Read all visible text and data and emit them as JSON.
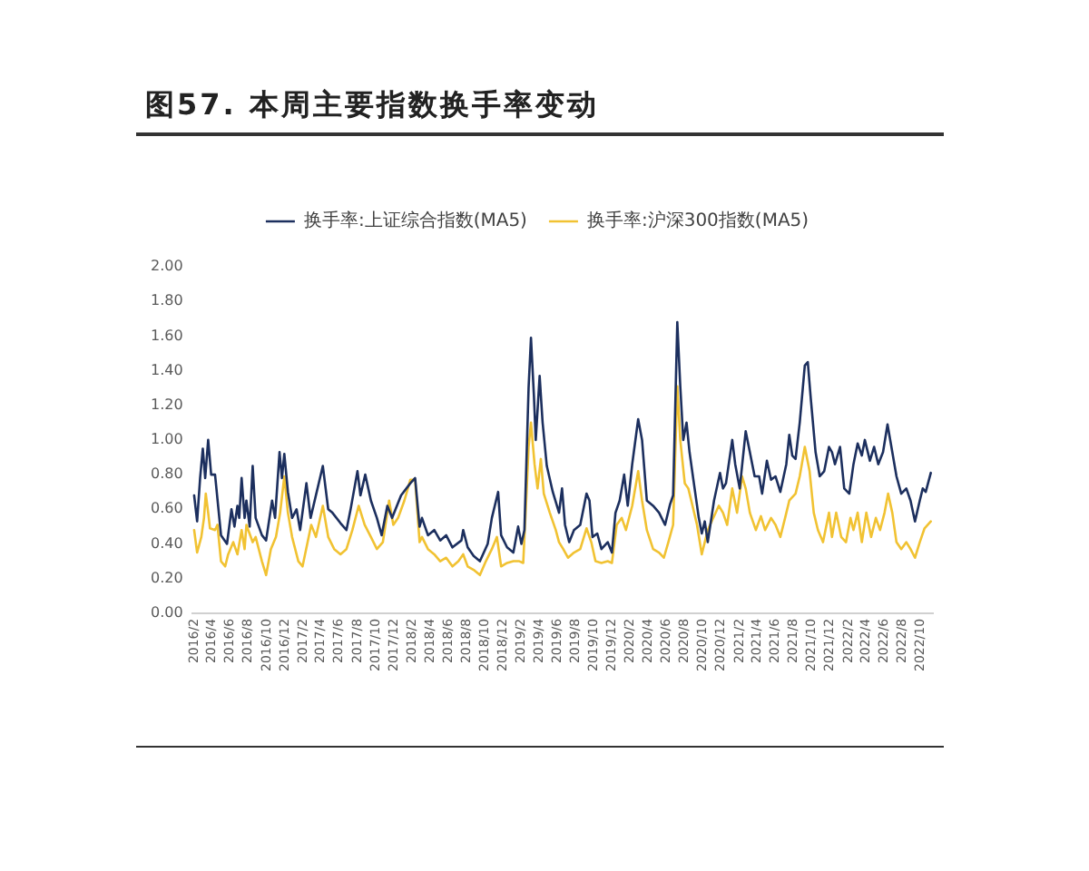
{
  "chart_data": {
    "type": "line",
    "title": "图57. 本周主要指数换手率变动",
    "legend": "top",
    "xlim": [
      "2016-01-25",
      "2022-11-10"
    ],
    "xticks": [
      {
        "value": "2016-02",
        "label": "2016/2"
      },
      {
        "value": "2016-04",
        "label": "2016/4"
      },
      {
        "value": "2016-06",
        "label": "2016/6"
      },
      {
        "value": "2016-08",
        "label": "2016/8"
      },
      {
        "value": "2016-10",
        "label": "2016/10"
      },
      {
        "value": "2016-12",
        "label": "2016/12"
      },
      {
        "value": "2017-02",
        "label": "2017/2"
      },
      {
        "value": "2017-04",
        "label": "2017/4"
      },
      {
        "value": "2017-06",
        "label": "2017/6"
      },
      {
        "value": "2017-08",
        "label": "2017/8"
      },
      {
        "value": "2017-10",
        "label": "2017/10"
      },
      {
        "value": "2017-12",
        "label": "2017/12"
      },
      {
        "value": "2018-02",
        "label": "2018/2"
      },
      {
        "value": "2018-04",
        "label": "2018/4"
      },
      {
        "value": "2018-06",
        "label": "2018/6"
      },
      {
        "value": "2018-08",
        "label": "2018/8"
      },
      {
        "value": "2018-10",
        "label": "2018/10"
      },
      {
        "value": "2018-12",
        "label": "2018/12"
      },
      {
        "value": "2019-02",
        "label": "2019/2"
      },
      {
        "value": "2019-04",
        "label": "2019/4"
      },
      {
        "value": "2019-06",
        "label": "2019/6"
      },
      {
        "value": "2019-08",
        "label": "2019/8"
      },
      {
        "value": "2019-10",
        "label": "2019/10"
      },
      {
        "value": "2019-12",
        "label": "2019/12"
      },
      {
        "value": "2020-02",
        "label": "2020/2"
      },
      {
        "value": "2020-04",
        "label": "2020/4"
      },
      {
        "value": "2020-06",
        "label": "2020/6"
      },
      {
        "value": "2020-08",
        "label": "2020/8"
      },
      {
        "value": "2020-10",
        "label": "2020/10"
      },
      {
        "value": "2020-12",
        "label": "2020/12"
      },
      {
        "value": "2021-02",
        "label": "2021/2"
      },
      {
        "value": "2021-04",
        "label": "2021/4"
      },
      {
        "value": "2021-06",
        "label": "2021/6"
      },
      {
        "value": "2021-08",
        "label": "2021/8"
      },
      {
        "value": "2021-10",
        "label": "2021/10"
      },
      {
        "value": "2021-12",
        "label": "2021/12"
      },
      {
        "value": "2022-02",
        "label": "2022/2"
      },
      {
        "value": "2022-04",
        "label": "2022/4"
      },
      {
        "value": "2022-06",
        "label": "2022/6"
      },
      {
        "value": "2022-08",
        "label": "2022/8"
      },
      {
        "value": "2022-10",
        "label": "2022/10"
      }
    ],
    "ylim": [
      0,
      2
    ],
    "yticks": [
      {
        "value": 0,
        "label": "0.00"
      },
      {
        "value": 0.2,
        "label": "0.20"
      },
      {
        "value": 0.4,
        "label": "0.40"
      },
      {
        "value": 0.6,
        "label": "0.60"
      },
      {
        "value": 0.8,
        "label": "0.80"
      },
      {
        "value": 1,
        "label": "1.00"
      },
      {
        "value": 1.2,
        "label": "1.20"
      },
      {
        "value": 1.4,
        "label": "1.40"
      },
      {
        "value": 1.6,
        "label": "1.60"
      },
      {
        "value": 1.8,
        "label": "1.80"
      },
      {
        "value": 2,
        "label": "2.00"
      }
    ],
    "series": [
      {
        "name": "换手率:上证综合指数(MA5)",
        "color": "#1c2f5e",
        "x": [
          "2016-02-01",
          "2016-02-11",
          "2016-02-21",
          "2016-03-01",
          "2016-03-09",
          "2016-03-19",
          "2016-03-29",
          "2016-04-11",
          "2016-05-01",
          "2016-05-21",
          "2016-06-05",
          "2016-06-15",
          "2016-06-25",
          "2016-07-01",
          "2016-07-09",
          "2016-07-19",
          "2016-07-25",
          "2016-08-05",
          "2016-08-15",
          "2016-08-25",
          "2016-09-15",
          "2016-09-29",
          "2016-10-19",
          "2016-10-29",
          "2016-11-13",
          "2016-11-21",
          "2016-11-29",
          "2016-12-11",
          "2016-12-25",
          "2017-01-09",
          "2017-01-21",
          "2017-02-11",
          "2017-02-25",
          "2017-04-07",
          "2017-04-25",
          "2017-05-09",
          "2017-06-05",
          "2017-06-25",
          "2017-07-09",
          "2017-08-01",
          "2017-08-11",
          "2017-08-27",
          "2017-09-15",
          "2017-10-05",
          "2017-10-21",
          "2017-11-09",
          "2017-11-25",
          "2017-12-25",
          "2018-01-25",
          "2018-02-10",
          "2018-02-25",
          "2018-03-05",
          "2018-03-25",
          "2018-04-15",
          "2018-05-05",
          "2018-05-25",
          "2018-06-15",
          "2018-07-15",
          "2018-07-21",
          "2018-08-05",
          "2018-08-25",
          "2018-09-15",
          "2018-10-11",
          "2018-10-25",
          "2018-11-15",
          "2018-11-25",
          "2018-12-15",
          "2019-01-05",
          "2019-01-21",
          "2019-02-01",
          "2019-02-11",
          "2019-02-25",
          "2019-03-05",
          "2019-03-15",
          "2019-03-21",
          "2019-04-03",
          "2019-04-13",
          "2019-04-27",
          "2019-05-17",
          "2019-06-07",
          "2019-06-17",
          "2019-06-27",
          "2019-07-11",
          "2019-07-27",
          "2019-08-17",
          "2019-09-07",
          "2019-09-17",
          "2019-09-27",
          "2019-10-13",
          "2019-10-27",
          "2019-11-17",
          "2019-12-01",
          "2019-12-13",
          "2019-12-27",
          "2020-01-11",
          "2020-01-23",
          "2020-02-07",
          "2020-02-27",
          "2020-03-11",
          "2020-03-27",
          "2020-04-17",
          "2020-05-07",
          "2020-05-27",
          "2020-06-13",
          "2020-06-23",
          "2020-07-07",
          "2020-07-17",
          "2020-07-27",
          "2020-08-07",
          "2020-08-17",
          "2020-09-03",
          "2020-09-17",
          "2020-09-27",
          "2020-10-07",
          "2020-10-17",
          "2020-11-07",
          "2020-11-27",
          "2020-12-07",
          "2020-12-17",
          "2021-01-07",
          "2021-01-17",
          "2021-02-01",
          "2021-02-21",
          "2021-03-07",
          "2021-03-23",
          "2021-04-07",
          "2021-04-17",
          "2021-05-03",
          "2021-05-17",
          "2021-06-01",
          "2021-06-17",
          "2021-07-07",
          "2021-07-17",
          "2021-07-27",
          "2021-08-07",
          "2021-08-21",
          "2021-09-07",
          "2021-09-17",
          "2021-09-27",
          "2021-10-13",
          "2021-10-27",
          "2021-11-11",
          "2021-11-27",
          "2021-12-07",
          "2021-12-17",
          "2022-01-03",
          "2022-01-17",
          "2022-02-03",
          "2022-02-17",
          "2022-03-03",
          "2022-03-17",
          "2022-03-27",
          "2022-04-13",
          "2022-04-27",
          "2022-05-11",
          "2022-05-27",
          "2022-06-11",
          "2022-06-27",
          "2022-07-11",
          "2022-07-27",
          "2022-08-13",
          "2022-08-27",
          "2022-09-11",
          "2022-09-27",
          "2022-10-07",
          "2022-10-17",
          "2022-11-03"
        ],
        "values": [
          0.68,
          0.53,
          0.78,
          0.95,
          0.78,
          1.0,
          0.8,
          0.8,
          0.45,
          0.4,
          0.6,
          0.5,
          0.62,
          0.55,
          0.78,
          0.55,
          0.65,
          0.5,
          0.85,
          0.55,
          0.45,
          0.42,
          0.65,
          0.55,
          0.93,
          0.78,
          0.92,
          0.7,
          0.55,
          0.6,
          0.48,
          0.75,
          0.55,
          0.85,
          0.6,
          0.58,
          0.52,
          0.48,
          0.6,
          0.82,
          0.68,
          0.8,
          0.65,
          0.55,
          0.45,
          0.62,
          0.55,
          0.68,
          0.75,
          0.78,
          0.5,
          0.55,
          0.45,
          0.48,
          0.42,
          0.45,
          0.38,
          0.42,
          0.48,
          0.38,
          0.33,
          0.3,
          0.4,
          0.55,
          0.7,
          0.45,
          0.38,
          0.35,
          0.5,
          0.4,
          0.48,
          1.3,
          1.59,
          1.25,
          1.0,
          1.37,
          1.1,
          0.85,
          0.7,
          0.58,
          0.72,
          0.51,
          0.41,
          0.48,
          0.51,
          0.69,
          0.65,
          0.44,
          0.46,
          0.37,
          0.41,
          0.35,
          0.58,
          0.65,
          0.8,
          0.62,
          0.86,
          1.12,
          1.0,
          0.65,
          0.62,
          0.58,
          0.51,
          0.63,
          0.68,
          1.68,
          1.31,
          1.0,
          1.1,
          0.93,
          0.72,
          0.55,
          0.46,
          0.53,
          0.41,
          0.65,
          0.81,
          0.72,
          0.75,
          1.0,
          0.86,
          0.72,
          1.05,
          0.93,
          0.79,
          0.79,
          0.69,
          0.88,
          0.77,
          0.79,
          0.7,
          0.86,
          1.03,
          0.91,
          0.89,
          1.1,
          1.43,
          1.45,
          1.24,
          0.93,
          0.79,
          0.82,
          0.96,
          0.93,
          0.86,
          0.96,
          0.72,
          0.69,
          0.86,
          0.98,
          0.91,
          1.0,
          0.88,
          0.96,
          0.86,
          0.93,
          1.09,
          0.93,
          0.79,
          0.69,
          0.72,
          0.65,
          0.53,
          0.65,
          0.72,
          0.7,
          0.81
        ]
      },
      {
        "name": "换手率:沪深300指数(MA5)",
        "color": "#f1c232",
        "x": [
          "2016-02-01",
          "2016-02-11",
          "2016-02-25",
          "2016-03-05",
          "2016-03-11",
          "2016-03-19",
          "2016-03-25",
          "2016-04-11",
          "2016-04-19",
          "2016-05-01",
          "2016-05-15",
          "2016-05-25",
          "2016-06-11",
          "2016-06-25",
          "2016-07-09",
          "2016-07-19",
          "2016-07-25",
          "2016-08-15",
          "2016-08-25",
          "2016-09-15",
          "2016-09-29",
          "2016-10-15",
          "2016-11-01",
          "2016-11-15",
          "2016-11-29",
          "2016-12-11",
          "2016-12-25",
          "2017-01-15",
          "2017-01-29",
          "2017-02-15",
          "2017-02-27",
          "2017-03-15",
          "2017-04-07",
          "2017-04-25",
          "2017-05-15",
          "2017-06-05",
          "2017-06-25",
          "2017-07-15",
          "2017-08-05",
          "2017-08-25",
          "2017-09-15",
          "2017-10-05",
          "2017-10-25",
          "2017-11-15",
          "2017-11-29",
          "2017-12-15",
          "2018-01-05",
          "2018-01-25",
          "2018-02-10",
          "2018-02-25",
          "2018-03-05",
          "2018-03-25",
          "2018-04-15",
          "2018-05-05",
          "2018-05-25",
          "2018-06-15",
          "2018-07-05",
          "2018-07-21",
          "2018-08-05",
          "2018-08-25",
          "2018-09-15",
          "2018-10-05",
          "2018-10-25",
          "2018-11-11",
          "2018-11-25",
          "2018-12-15",
          "2019-01-05",
          "2019-01-25",
          "2019-02-07",
          "2019-02-17",
          "2019-02-25",
          "2019-03-05",
          "2019-03-17",
          "2019-03-27",
          "2019-04-07",
          "2019-04-17",
          "2019-05-07",
          "2019-05-27",
          "2019-06-07",
          "2019-06-21",
          "2019-07-07",
          "2019-07-27",
          "2019-08-17",
          "2019-09-07",
          "2019-09-23",
          "2019-10-07",
          "2019-10-27",
          "2019-11-17",
          "2019-12-01",
          "2019-12-17",
          "2020-01-03",
          "2020-01-17",
          "2020-02-07",
          "2020-02-27",
          "2020-03-11",
          "2020-03-27",
          "2020-04-17",
          "2020-05-07",
          "2020-05-23",
          "2020-06-07",
          "2020-06-23",
          "2020-07-07",
          "2020-07-17",
          "2020-08-01",
          "2020-08-13",
          "2020-08-27",
          "2020-09-11",
          "2020-09-27",
          "2020-10-17",
          "2020-11-07",
          "2020-11-23",
          "2020-12-07",
          "2020-12-21",
          "2021-01-07",
          "2021-01-23",
          "2021-02-09",
          "2021-02-21",
          "2021-03-07",
          "2021-03-27",
          "2021-04-13",
          "2021-04-27",
          "2021-05-17",
          "2021-06-01",
          "2021-06-17",
          "2021-07-03",
          "2021-07-17",
          "2021-08-07",
          "2021-08-21",
          "2021-09-07",
          "2021-09-23",
          "2021-10-07",
          "2021-10-21",
          "2021-11-07",
          "2021-11-27",
          "2021-12-07",
          "2021-12-21",
          "2022-01-07",
          "2022-01-23",
          "2022-02-07",
          "2022-02-17",
          "2022-03-03",
          "2022-03-17",
          "2022-04-01",
          "2022-04-17",
          "2022-05-03",
          "2022-05-17",
          "2022-06-01",
          "2022-06-13",
          "2022-06-27",
          "2022-07-11",
          "2022-07-27",
          "2022-08-13",
          "2022-08-27",
          "2022-09-11",
          "2022-09-27",
          "2022-10-13",
          "2022-11-03"
        ],
        "values": [
          0.48,
          0.35,
          0.44,
          0.55,
          0.69,
          0.58,
          0.49,
          0.48,
          0.51,
          0.3,
          0.27,
          0.34,
          0.41,
          0.34,
          0.48,
          0.37,
          0.51,
          0.41,
          0.44,
          0.3,
          0.22,
          0.37,
          0.44,
          0.58,
          0.79,
          0.58,
          0.44,
          0.3,
          0.27,
          0.41,
          0.51,
          0.44,
          0.62,
          0.44,
          0.37,
          0.34,
          0.37,
          0.48,
          0.62,
          0.51,
          0.44,
          0.37,
          0.41,
          0.65,
          0.51,
          0.55,
          0.65,
          0.77,
          0.77,
          0.41,
          0.44,
          0.37,
          0.34,
          0.3,
          0.32,
          0.27,
          0.3,
          0.34,
          0.27,
          0.25,
          0.22,
          0.3,
          0.37,
          0.44,
          0.27,
          0.29,
          0.3,
          0.3,
          0.29,
          0.65,
          0.96,
          1.1,
          0.86,
          0.72,
          0.89,
          0.69,
          0.58,
          0.48,
          0.41,
          0.37,
          0.32,
          0.35,
          0.37,
          0.49,
          0.41,
          0.3,
          0.29,
          0.3,
          0.29,
          0.51,
          0.55,
          0.48,
          0.62,
          0.82,
          0.65,
          0.48,
          0.37,
          0.35,
          0.32,
          0.41,
          0.51,
          1.31,
          1.0,
          0.75,
          0.72,
          0.62,
          0.51,
          0.34,
          0.48,
          0.56,
          0.62,
          0.58,
          0.51,
          0.72,
          0.58,
          0.79,
          0.72,
          0.58,
          0.48,
          0.56,
          0.48,
          0.55,
          0.51,
          0.44,
          0.55,
          0.65,
          0.69,
          0.79,
          0.96,
          0.82,
          0.58,
          0.48,
          0.41,
          0.58,
          0.44,
          0.58,
          0.44,
          0.41,
          0.55,
          0.48,
          0.58,
          0.41,
          0.58,
          0.44,
          0.55,
          0.48,
          0.58,
          0.69,
          0.58,
          0.41,
          0.37,
          0.41,
          0.37,
          0.32,
          0.41,
          0.49,
          0.53
        ]
      }
    ]
  }
}
